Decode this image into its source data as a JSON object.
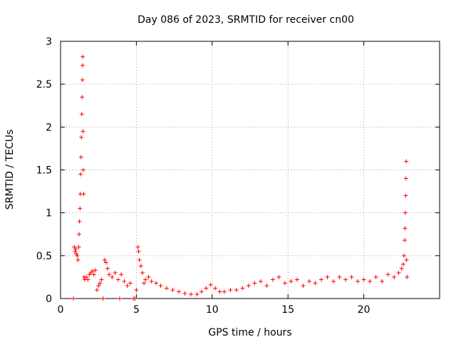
{
  "chart_data": {
    "type": "scatter",
    "title": "Day 086 of 2023, SRMTID for receiver cn00",
    "xlabel": "GPS time / hours",
    "ylabel": "SRMTID / TECUs",
    "xlim": [
      0,
      25
    ],
    "ylim": [
      0,
      3
    ],
    "xticks": [
      0,
      5,
      10,
      15,
      20
    ],
    "yticks": [
      0,
      0.5,
      1,
      1.5,
      2,
      2.5,
      3
    ],
    "xtick_labels": [
      "0",
      "5",
      "10",
      "15",
      "20"
    ],
    "ytick_labels": [
      "0",
      "0.5",
      "1",
      "1.5",
      "2",
      "2.5",
      "3"
    ],
    "grid": true,
    "marker": "+",
    "color": "#ff0000",
    "series": [
      {
        "name": "cn00",
        "points": [
          [
            0.85,
            0.0
          ],
          [
            0.9,
            0.6
          ],
          [
            0.95,
            0.55
          ],
          [
            1.0,
            0.58
          ],
          [
            1.05,
            0.52
          ],
          [
            1.1,
            0.5
          ],
          [
            1.15,
            0.45
          ],
          [
            1.2,
            0.6
          ],
          [
            1.22,
            0.75
          ],
          [
            1.25,
            0.9
          ],
          [
            1.28,
            1.05
          ],
          [
            1.3,
            1.22
          ],
          [
            1.32,
            1.45
          ],
          [
            1.35,
            1.65
          ],
          [
            1.37,
            1.88
          ],
          [
            1.4,
            2.15
          ],
          [
            1.42,
            2.35
          ],
          [
            1.44,
            2.55
          ],
          [
            1.45,
            2.72
          ],
          [
            1.46,
            2.82
          ],
          [
            1.48,
            1.95
          ],
          [
            1.5,
            1.5
          ],
          [
            1.52,
            1.22
          ],
          [
            1.55,
            0.25
          ],
          [
            1.6,
            0.22
          ],
          [
            1.7,
            0.25
          ],
          [
            1.8,
            0.22
          ],
          [
            1.9,
            0.28
          ],
          [
            2.0,
            0.3
          ],
          [
            2.1,
            0.32
          ],
          [
            2.2,
            0.28
          ],
          [
            2.3,
            0.33
          ],
          [
            2.4,
            0.1
          ],
          [
            2.5,
            0.15
          ],
          [
            2.6,
            0.18
          ],
          [
            2.7,
            0.22
          ],
          [
            2.8,
            0.0
          ],
          [
            2.9,
            0.45
          ],
          [
            3.0,
            0.42
          ],
          [
            3.1,
            0.35
          ],
          [
            3.2,
            0.28
          ],
          [
            3.4,
            0.25
          ],
          [
            3.6,
            0.3
          ],
          [
            3.8,
            0.22
          ],
          [
            3.9,
            0.0
          ],
          [
            4.0,
            0.28
          ],
          [
            4.2,
            0.2
          ],
          [
            4.4,
            0.15
          ],
          [
            4.6,
            0.18
          ],
          [
            4.8,
            0.0
          ],
          [
            4.9,
            0.0
          ],
          [
            5.0,
            0.1
          ],
          [
            5.1,
            0.6
          ],
          [
            5.15,
            0.55
          ],
          [
            5.2,
            0.45
          ],
          [
            5.3,
            0.38
          ],
          [
            5.4,
            0.3
          ],
          [
            5.5,
            0.18
          ],
          [
            5.6,
            0.22
          ],
          [
            5.8,
            0.25
          ],
          [
            6.0,
            0.2
          ],
          [
            6.3,
            0.18
          ],
          [
            6.6,
            0.15
          ],
          [
            7.0,
            0.12
          ],
          [
            7.4,
            0.1
          ],
          [
            7.8,
            0.08
          ],
          [
            8.2,
            0.06
          ],
          [
            8.6,
            0.05
          ],
          [
            9.0,
            0.05
          ],
          [
            9.3,
            0.08
          ],
          [
            9.6,
            0.12
          ],
          [
            9.9,
            0.16
          ],
          [
            10.2,
            0.12
          ],
          [
            10.5,
            0.08
          ],
          [
            10.8,
            0.08
          ],
          [
            11.2,
            0.1
          ],
          [
            11.6,
            0.1
          ],
          [
            12.0,
            0.12
          ],
          [
            12.4,
            0.15
          ],
          [
            12.8,
            0.18
          ],
          [
            13.2,
            0.2
          ],
          [
            13.6,
            0.15
          ],
          [
            14.0,
            0.22
          ],
          [
            14.4,
            0.25
          ],
          [
            14.8,
            0.18
          ],
          [
            15.2,
            0.2
          ],
          [
            15.6,
            0.22
          ],
          [
            16.0,
            0.15
          ],
          [
            16.4,
            0.2
          ],
          [
            16.8,
            0.18
          ],
          [
            17.2,
            0.22
          ],
          [
            17.6,
            0.25
          ],
          [
            18.0,
            0.2
          ],
          [
            18.4,
            0.25
          ],
          [
            18.8,
            0.22
          ],
          [
            19.2,
            0.25
          ],
          [
            19.6,
            0.2
          ],
          [
            20.0,
            0.22
          ],
          [
            20.4,
            0.2
          ],
          [
            20.8,
            0.25
          ],
          [
            21.2,
            0.2
          ],
          [
            21.6,
            0.28
          ],
          [
            22.0,
            0.25
          ],
          [
            22.3,
            0.3
          ],
          [
            22.5,
            0.35
          ],
          [
            22.6,
            0.4
          ],
          [
            22.65,
            0.5
          ],
          [
            22.7,
            0.68
          ],
          [
            22.72,
            0.82
          ],
          [
            22.74,
            1.0
          ],
          [
            22.76,
            1.2
          ],
          [
            22.78,
            1.4
          ],
          [
            22.8,
            1.6
          ],
          [
            22.82,
            0.45
          ],
          [
            22.85,
            0.25
          ]
        ]
      }
    ]
  }
}
